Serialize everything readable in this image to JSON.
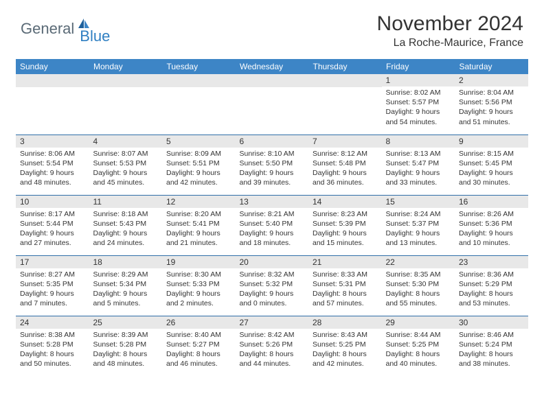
{
  "logo": {
    "left": "General",
    "right": "Blue"
  },
  "title": "November 2024",
  "location": "La Roche-Maurice, France",
  "columns": [
    "Sunday",
    "Monday",
    "Tuesday",
    "Wednesday",
    "Thursday",
    "Friday",
    "Saturday"
  ],
  "weeks": [
    [
      null,
      null,
      null,
      null,
      null,
      {
        "n": "1",
        "sr": "8:02 AM",
        "ss": "5:57 PM",
        "dl": "9 hours and 54 minutes."
      },
      {
        "n": "2",
        "sr": "8:04 AM",
        "ss": "5:56 PM",
        "dl": "9 hours and 51 minutes."
      }
    ],
    [
      {
        "n": "3",
        "sr": "8:06 AM",
        "ss": "5:54 PM",
        "dl": "9 hours and 48 minutes."
      },
      {
        "n": "4",
        "sr": "8:07 AM",
        "ss": "5:53 PM",
        "dl": "9 hours and 45 minutes."
      },
      {
        "n": "5",
        "sr": "8:09 AM",
        "ss": "5:51 PM",
        "dl": "9 hours and 42 minutes."
      },
      {
        "n": "6",
        "sr": "8:10 AM",
        "ss": "5:50 PM",
        "dl": "9 hours and 39 minutes."
      },
      {
        "n": "7",
        "sr": "8:12 AM",
        "ss": "5:48 PM",
        "dl": "9 hours and 36 minutes."
      },
      {
        "n": "8",
        "sr": "8:13 AM",
        "ss": "5:47 PM",
        "dl": "9 hours and 33 minutes."
      },
      {
        "n": "9",
        "sr": "8:15 AM",
        "ss": "5:45 PM",
        "dl": "9 hours and 30 minutes."
      }
    ],
    [
      {
        "n": "10",
        "sr": "8:17 AM",
        "ss": "5:44 PM",
        "dl": "9 hours and 27 minutes."
      },
      {
        "n": "11",
        "sr": "8:18 AM",
        "ss": "5:43 PM",
        "dl": "9 hours and 24 minutes."
      },
      {
        "n": "12",
        "sr": "8:20 AM",
        "ss": "5:41 PM",
        "dl": "9 hours and 21 minutes."
      },
      {
        "n": "13",
        "sr": "8:21 AM",
        "ss": "5:40 PM",
        "dl": "9 hours and 18 minutes."
      },
      {
        "n": "14",
        "sr": "8:23 AM",
        "ss": "5:39 PM",
        "dl": "9 hours and 15 minutes."
      },
      {
        "n": "15",
        "sr": "8:24 AM",
        "ss": "5:37 PM",
        "dl": "9 hours and 13 minutes."
      },
      {
        "n": "16",
        "sr": "8:26 AM",
        "ss": "5:36 PM",
        "dl": "9 hours and 10 minutes."
      }
    ],
    [
      {
        "n": "17",
        "sr": "8:27 AM",
        "ss": "5:35 PM",
        "dl": "9 hours and 7 minutes."
      },
      {
        "n": "18",
        "sr": "8:29 AM",
        "ss": "5:34 PM",
        "dl": "9 hours and 5 minutes."
      },
      {
        "n": "19",
        "sr": "8:30 AM",
        "ss": "5:33 PM",
        "dl": "9 hours and 2 minutes."
      },
      {
        "n": "20",
        "sr": "8:32 AM",
        "ss": "5:32 PM",
        "dl": "9 hours and 0 minutes."
      },
      {
        "n": "21",
        "sr": "8:33 AM",
        "ss": "5:31 PM",
        "dl": "8 hours and 57 minutes."
      },
      {
        "n": "22",
        "sr": "8:35 AM",
        "ss": "5:30 PM",
        "dl": "8 hours and 55 minutes."
      },
      {
        "n": "23",
        "sr": "8:36 AM",
        "ss": "5:29 PM",
        "dl": "8 hours and 53 minutes."
      }
    ],
    [
      {
        "n": "24",
        "sr": "8:38 AM",
        "ss": "5:28 PM",
        "dl": "8 hours and 50 minutes."
      },
      {
        "n": "25",
        "sr": "8:39 AM",
        "ss": "5:28 PM",
        "dl": "8 hours and 48 minutes."
      },
      {
        "n": "26",
        "sr": "8:40 AM",
        "ss": "5:27 PM",
        "dl": "8 hours and 46 minutes."
      },
      {
        "n": "27",
        "sr": "8:42 AM",
        "ss": "5:26 PM",
        "dl": "8 hours and 44 minutes."
      },
      {
        "n": "28",
        "sr": "8:43 AM",
        "ss": "5:25 PM",
        "dl": "8 hours and 42 minutes."
      },
      {
        "n": "29",
        "sr": "8:44 AM",
        "ss": "5:25 PM",
        "dl": "8 hours and 40 minutes."
      },
      {
        "n": "30",
        "sr": "8:46 AM",
        "ss": "5:24 PM",
        "dl": "8 hours and 38 minutes."
      }
    ]
  ],
  "labels": {
    "sunrise": "Sunrise:",
    "sunset": "Sunset:",
    "daylight": "Daylight:"
  },
  "colors": {
    "header_bg": "#3d85c6",
    "row_divider": "#2f6ea8",
    "daynum_bg": "#e8e8e8",
    "text": "#333333",
    "logo_gray": "#5a6a76",
    "logo_blue": "#2f7fc2"
  }
}
